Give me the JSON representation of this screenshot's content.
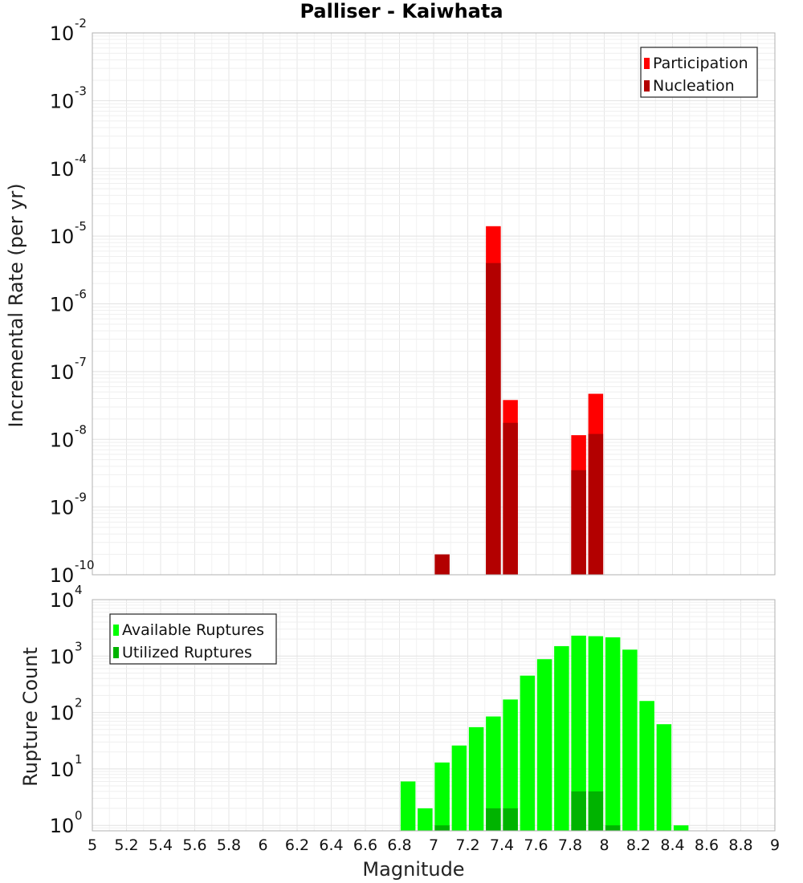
{
  "chart_data": [
    {
      "type": "bar",
      "title": "Palliser - Kaiwhata",
      "ylabel": "Incremental Rate (per yr)",
      "xlabel": "",
      "y_scale": "log",
      "ylim": [
        1e-10,
        0.01
      ],
      "xlim": [
        5,
        9
      ],
      "grid": true,
      "legend_position": "top-right",
      "series": [
        {
          "name": "Participation",
          "color": "#ff0000",
          "x": [
            7.35,
            7.45,
            7.85,
            7.95
          ],
          "values": [
            1.4e-05,
            3.8e-08,
            1.15e-08,
            4.7e-08
          ]
        },
        {
          "name": "Nucleation",
          "color": "#b30000",
          "x": [
            7.05,
            7.35,
            7.45,
            7.85,
            7.95
          ],
          "values": [
            2e-10,
            4e-06,
            1.75e-08,
            3.5e-09,
            1.2e-08
          ]
        }
      ],
      "ytick_bases": [
        "10",
        "10",
        "10",
        "10",
        "10",
        "10",
        "10",
        "10",
        "10"
      ],
      "ytick_exponents": [
        "-10",
        "-9",
        "-8",
        "-7",
        "-6",
        "-5",
        "-4",
        "-3",
        "-2"
      ]
    },
    {
      "type": "bar",
      "title": "",
      "ylabel": "Rupture Count",
      "xlabel": "Magnitude",
      "y_scale": "log",
      "ylim": [
        0.8,
        10000
      ],
      "xlim": [
        5,
        9
      ],
      "grid": true,
      "legend_position": "top-left",
      "series": [
        {
          "name": "Available Ruptures",
          "color": "#00ff00",
          "x": [
            6.85,
            6.95,
            7.05,
            7.15,
            7.25,
            7.35,
            7.45,
            7.55,
            7.65,
            7.75,
            7.85,
            7.95,
            8.05,
            8.15,
            8.25,
            8.35,
            8.45
          ],
          "values": [
            6,
            2,
            13,
            26,
            55,
            85,
            170,
            450,
            880,
            1500,
            2300,
            2250,
            2150,
            1300,
            160,
            62,
            1
          ]
        },
        {
          "name": "Utilized Ruptures",
          "color": "#00b300",
          "x": [
            7.05,
            7.35,
            7.45,
            7.85,
            7.95,
            8.05
          ],
          "values": [
            1,
            2,
            2,
            4,
            4,
            1
          ]
        }
      ],
      "ytick_bases": [
        "10",
        "10",
        "10",
        "10",
        "10"
      ],
      "ytick_exponents": [
        "0",
        "1",
        "2",
        "3",
        "4"
      ],
      "x_ticks": [
        "5",
        "5.2",
        "5.4",
        "5.6",
        "5.8",
        "6",
        "6.2",
        "6.4",
        "6.6",
        "6.8",
        "7",
        "7.2",
        "7.4",
        "7.6",
        "7.8",
        "8",
        "8.2",
        "8.4",
        "8.6",
        "8.8",
        "9"
      ]
    }
  ]
}
